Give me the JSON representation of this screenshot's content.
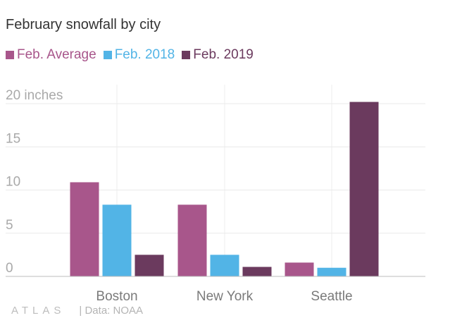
{
  "chart_data": {
    "type": "bar",
    "title": "February snowfall by city",
    "categories": [
      "Boston",
      "New York",
      "Seattle"
    ],
    "series": [
      {
        "name": "Feb. Average",
        "values": [
          10.9,
          8.3,
          1.6
        ],
        "color": "#a8568b"
      },
      {
        "name": "Feb. 2018",
        "values": [
          8.3,
          2.5,
          1.0
        ],
        "color": "#52b4e6"
      },
      {
        "name": "Feb. 2019",
        "values": [
          2.5,
          1.1,
          20.2
        ],
        "color": "#6b3a5e"
      }
    ],
    "y_ticks": [
      {
        "value": 0,
        "label": "0"
      },
      {
        "value": 5,
        "label": "5"
      },
      {
        "value": 10,
        "label": "10"
      },
      {
        "value": 15,
        "label": "15"
      },
      {
        "value": 20,
        "label": "20 inches"
      }
    ],
    "ylim": [
      0,
      23
    ],
    "grid": true,
    "legend_position": "top-left",
    "xlabel": "",
    "ylabel": ""
  },
  "footer": {
    "brand": "ATLAS",
    "credit": "| Data: NOAA"
  }
}
